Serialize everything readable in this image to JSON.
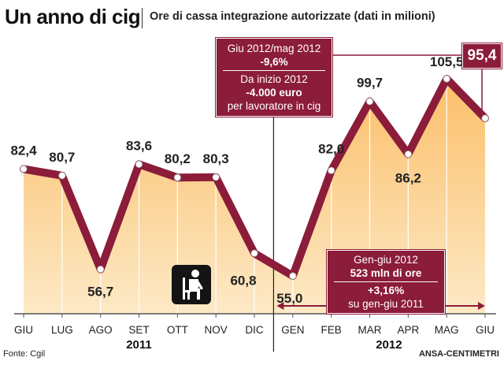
{
  "header": {
    "title": "Un anno di cig",
    "subtitle": "Ore di cassa integrazione autorizzate (dati in milioni)"
  },
  "footer": {
    "source": "Fonte: Cgil",
    "credit": "ANSA-CENTIMETRI"
  },
  "callout_top": {
    "line1": "Giu 2012/mag 2012",
    "line2": "-9,6%",
    "line3": "Da inizio 2012",
    "line4": "-4.000 euro",
    "line5": "per lavoratore in cig"
  },
  "callout_bottom": {
    "line1": "Gen-giu 2012",
    "line2": "523 mln di ore",
    "line3": "+3,16%",
    "line4": "su gen-giu 2011"
  },
  "icon": {
    "name": "seated-worker-icon"
  },
  "colors": {
    "line": "#8b1c3a",
    "fill_top": "#fbbf6a",
    "fill_bottom": "#fde9c6",
    "accent": "#8b1c3a"
  },
  "chart_data": {
    "type": "line",
    "title": "Un anno di cig",
    "ylabel": "",
    "xlabel": "",
    "categories": [
      "GIU",
      "LUG",
      "AGO",
      "SET",
      "OTT",
      "NOV",
      "DIC",
      "GEN",
      "FEB",
      "MAR",
      "APR",
      "MAG",
      "GIU"
    ],
    "years": [
      {
        "label": "2011",
        "from": 0,
        "to": 6
      },
      {
        "label": "2012",
        "from": 7,
        "to": 12
      }
    ],
    "series": [
      {
        "name": "",
        "values": [
          82.4,
          80.7,
          56.7,
          83.6,
          80.2,
          80.3,
          60.8,
          55.0,
          82.0,
          99.7,
          86.2,
          105.5,
          95.4
        ],
        "labels": [
          "82,4",
          "80,7",
          "56,7",
          "83,6",
          "80,2",
          "80,3",
          "60,8",
          "55,0",
          "82,0",
          "99,7",
          "86,2",
          "105,5",
          "95,4"
        ]
      }
    ],
    "ylim": [
      40,
      120
    ],
    "grid": false,
    "legend": "none"
  }
}
